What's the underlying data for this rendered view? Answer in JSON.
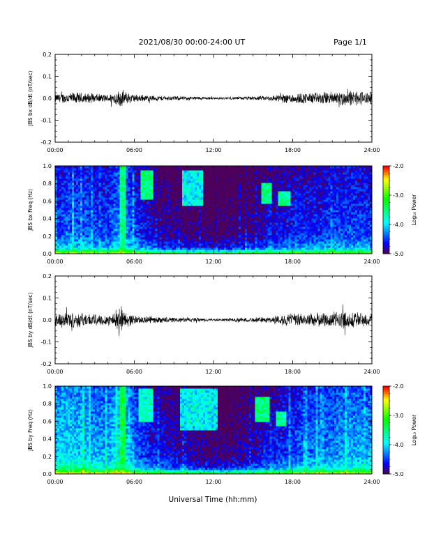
{
  "header": {
    "title": "2021/08/30  00:00-24:00 UT",
    "page": "Page 1/1"
  },
  "xlabel": "Universal Time (hh:mm)",
  "colorbar_label": "Log₁₀ Power",
  "chart_data": [
    {
      "type": "line",
      "ylabel": "JBS bx dB/dt (nT/sec)",
      "xlim": [
        0,
        24
      ],
      "ylim": [
        -0.2,
        0.2
      ],
      "xticks": [
        "00:00",
        "06:00",
        "12:00",
        "18:00",
        "24:00"
      ],
      "yticks": [
        "-0.2",
        "-0.1",
        "0.0",
        "0.1",
        "0.2"
      ],
      "envelope": {
        "x": [
          0,
          1,
          2,
          3,
          4,
          5,
          5.5,
          6,
          7,
          8,
          9,
          10,
          11,
          12,
          13,
          14,
          15,
          16,
          17,
          18,
          19,
          20,
          21,
          22,
          23,
          24
        ],
        "amplitude": [
          0.022,
          0.03,
          0.028,
          0.022,
          0.02,
          0.045,
          0.03,
          0.02,
          0.016,
          0.013,
          0.011,
          0.01,
          0.008,
          0.006,
          0.006,
          0.008,
          0.01,
          0.012,
          0.02,
          0.028,
          0.028,
          0.03,
          0.035,
          0.04,
          0.038,
          0.03
        ]
      }
    },
    {
      "type": "heatmap",
      "ylabel": "JBS bx Freq (Hz)",
      "xlim": [
        0,
        24
      ],
      "ylim": [
        0,
        1
      ],
      "zlim": [
        -5,
        -2
      ],
      "xticks": [
        "00:00",
        "06:00",
        "12:00",
        "18:00",
        "24:00"
      ],
      "yticks": [
        "0.0",
        "0.2",
        "0.4",
        "0.6",
        "0.8",
        "1.0"
      ],
      "colorbar_ticks": [
        "-5.0",
        "-4.0",
        "-3.0",
        "-2.0"
      ],
      "background_level": {
        "x": [
          0,
          1,
          2,
          3,
          4,
          5,
          6,
          7,
          8,
          9,
          10,
          11,
          12,
          13,
          14,
          15,
          16,
          17,
          18,
          19,
          20,
          21,
          22,
          23,
          24
        ],
        "log_power": [
          -4.4,
          -4.3,
          -4.3,
          -4.4,
          -4.4,
          -4.1,
          -4.4,
          -4.6,
          -4.8,
          -4.8,
          -4.9,
          -4.9,
          -5.0,
          -4.9,
          -4.9,
          -4.8,
          -4.7,
          -4.6,
          -4.5,
          -4.5,
          -4.5,
          -4.4,
          -4.4,
          -4.4,
          -4.4
        ]
      },
      "features": [
        {
          "t0": 4.9,
          "t1": 5.3,
          "f0": 0.0,
          "f1": 1.0,
          "log_power": -3.4
        },
        {
          "t0": 6.4,
          "t1": 7.4,
          "f0": 0.62,
          "f1": 0.95,
          "log_power": -3.4
        },
        {
          "t0": 9.6,
          "t1": 11.2,
          "f0": 0.55,
          "f1": 0.95,
          "log_power": -3.8
        },
        {
          "t0": 15.6,
          "t1": 16.4,
          "f0": 0.58,
          "f1": 0.82,
          "log_power": -3.4
        },
        {
          "t0": 16.9,
          "t1": 17.8,
          "f0": 0.55,
          "f1": 0.72,
          "log_power": -3.5
        }
      ]
    },
    {
      "type": "line",
      "ylabel": "JBS by dB/dt (nT/sec)",
      "xlim": [
        0,
        24
      ],
      "ylim": [
        -0.2,
        0.2
      ],
      "xticks": [
        "00:00",
        "06:00",
        "12:00",
        "18:00",
        "24:00"
      ],
      "yticks": [
        "-0.2",
        "-0.1",
        "0.0",
        "0.1",
        "0.2"
      ],
      "envelope": {
        "x": [
          0,
          1,
          2,
          3,
          4,
          5,
          5.5,
          6,
          7,
          8,
          9,
          10,
          11,
          12,
          13,
          14,
          15,
          16,
          17,
          18,
          19,
          20,
          21,
          22,
          23,
          24
        ],
        "amplitude": [
          0.03,
          0.045,
          0.035,
          0.03,
          0.028,
          0.06,
          0.035,
          0.022,
          0.018,
          0.015,
          0.013,
          0.012,
          0.01,
          0.006,
          0.008,
          0.01,
          0.012,
          0.014,
          0.025,
          0.035,
          0.032,
          0.035,
          0.04,
          0.045,
          0.04,
          0.035
        ]
      }
    },
    {
      "type": "heatmap",
      "ylabel": "JBS by Freq (Hz)",
      "xlim": [
        0,
        24
      ],
      "ylim": [
        0,
        1
      ],
      "zlim": [
        -5,
        -2
      ],
      "xticks": [
        "00:00",
        "06:00",
        "12:00",
        "18:00",
        "24:00"
      ],
      "yticks": [
        "0.0",
        "0.2",
        "0.4",
        "0.6",
        "0.8",
        "1.0"
      ],
      "colorbar_ticks": [
        "-5.0",
        "-4.0",
        "-3.0",
        "-2.0"
      ],
      "background_level": {
        "x": [
          0,
          1,
          2,
          3,
          4,
          5,
          6,
          7,
          8,
          9,
          10,
          11,
          12,
          13,
          14,
          15,
          16,
          17,
          18,
          19,
          20,
          21,
          22,
          23,
          24
        ],
        "log_power": [
          -4.0,
          -3.9,
          -4.0,
          -4.1,
          -4.1,
          -3.8,
          -4.2,
          -4.5,
          -4.6,
          -4.7,
          -4.8,
          -4.8,
          -4.9,
          -4.9,
          -4.8,
          -4.7,
          -4.6,
          -4.5,
          -4.4,
          -4.3,
          -4.2,
          -4.2,
          -4.1,
          -4.1,
          -4.1
        ]
      },
      "features": [
        {
          "t0": 4.9,
          "t1": 5.3,
          "f0": 0.0,
          "f1": 1.0,
          "log_power": -3.2
        },
        {
          "t0": 6.3,
          "t1": 7.4,
          "f0": 0.6,
          "f1": 0.98,
          "log_power": -3.6
        },
        {
          "t0": 9.4,
          "t1": 12.3,
          "f0": 0.5,
          "f1": 0.98,
          "log_power": -3.8
        },
        {
          "t0": 15.2,
          "t1": 16.2,
          "f0": 0.6,
          "f1": 0.88,
          "log_power": -3.4
        },
        {
          "t0": 16.8,
          "t1": 17.6,
          "f0": 0.55,
          "f1": 0.72,
          "log_power": -3.5
        }
      ]
    }
  ]
}
